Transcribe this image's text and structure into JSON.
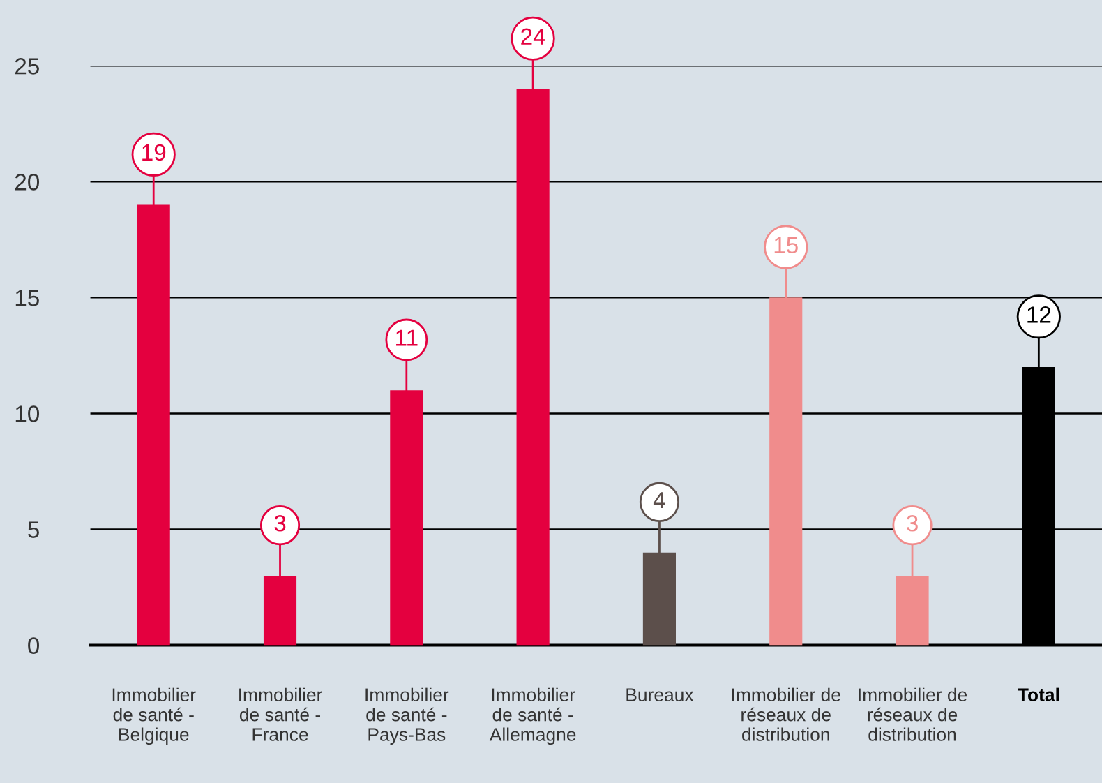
{
  "chart_data": {
    "type": "bar",
    "categories": [
      "Immobilier\nde santé -\nBelgique",
      "Immobilier\nde santé -\nFrance",
      "Immobilier\nde santé -\nPays-Bas",
      "Immobilier\nde santé -\nAllemagne",
      "Bureaux",
      "Immobilier de\nréseaux de\ndistribution",
      "Immobilier de\nréseaux de\ndistribution",
      "Total"
    ],
    "values": [
      19,
      3,
      11,
      24,
      4,
      15,
      3,
      12
    ],
    "colors": [
      "#e4003f",
      "#e4003f",
      "#e4003f",
      "#e4003f",
      "#5c4f4b",
      "#f08c8c",
      "#f08c8c",
      "#000000"
    ],
    "ylim": [
      0,
      25
    ],
    "yticks": [
      0,
      5,
      10,
      15,
      20,
      25
    ],
    "grid": "y",
    "data_labels": true
  }
}
